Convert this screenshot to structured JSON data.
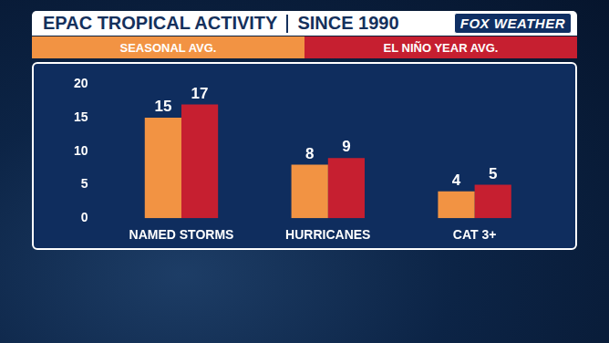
{
  "chart_data": {
    "type": "bar",
    "title": "EPAC TROPICAL ACTIVITY",
    "subtitle": "SINCE 1990",
    "logo": "FOX WEATHER",
    "categories": [
      "NAMED STORMS",
      "HURRICANES",
      "CAT 3+"
    ],
    "series": [
      {
        "name": "SEASONAL AVG.",
        "color": "#f29343",
        "values": [
          15,
          8,
          4
        ]
      },
      {
        "name": "EL NIÑO YEAR AVG.",
        "color": "#c61f30",
        "values": [
          17,
          9,
          5
        ]
      }
    ],
    "ylim": [
      0,
      20
    ],
    "yticks": [
      0,
      5,
      10,
      15,
      20
    ],
    "grid": false,
    "legend": "top",
    "data_labels": true
  }
}
